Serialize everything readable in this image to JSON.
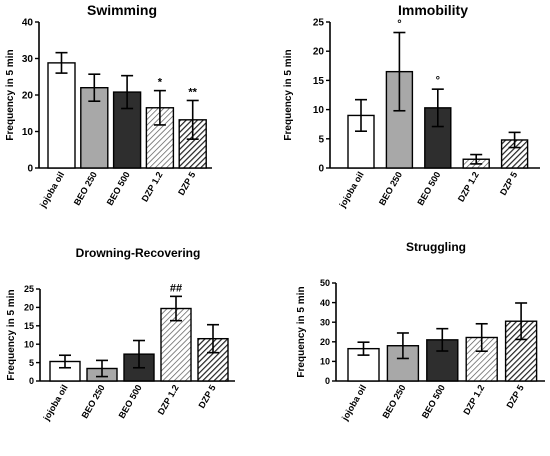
{
  "chart_data": [
    {
      "type": "bar",
      "title": "Swimming",
      "ylabel": "Frequency in 5 min",
      "ylim": [
        0,
        40
      ],
      "yticks": [
        0,
        10,
        20,
        30,
        40
      ],
      "categories": [
        "jojoba oil",
        "BEO 250",
        "BEO 500",
        "DZP 1.2",
        "DZP 5"
      ],
      "values": [
        28.8,
        22.0,
        20.8,
        16.5,
        13.2
      ],
      "errors": [
        2.8,
        3.7,
        4.5,
        4.7,
        5.3
      ],
      "annotations": [
        "",
        "",
        "",
        "*",
        "**"
      ],
      "fills": [
        "white",
        "lightgray",
        "darkgray",
        "hatch",
        "darkhatch"
      ]
    },
    {
      "type": "bar",
      "title": "Immobility",
      "ylabel": "Frequency in 5 min",
      "ylim": [
        0,
        25
      ],
      "yticks": [
        0,
        5,
        10,
        15,
        20,
        25
      ],
      "categories": [
        "jojoba oil",
        "BEO 250",
        "BEO 500",
        "DZP 1.2",
        "DZP 5"
      ],
      "values": [
        9.0,
        16.5,
        10.3,
        1.5,
        4.8
      ],
      "errors": [
        2.7,
        6.7,
        3.2,
        0.8,
        1.3
      ],
      "annotations": [
        "",
        "°",
        "°",
        "",
        ""
      ],
      "fills": [
        "white",
        "lightgray",
        "darkgray",
        "hatch",
        "darkhatch"
      ]
    },
    {
      "type": "bar",
      "title": "Drowning-Recovering",
      "ylabel": "Frequency in 5 min",
      "ylim": [
        0,
        25
      ],
      "yticks": [
        0,
        5,
        10,
        15,
        20,
        25
      ],
      "categories": [
        "jojoba oil",
        "BEO 250",
        "BEO 500",
        "DZP 1.2",
        "DZP 5"
      ],
      "values": [
        5.3,
        3.4,
        7.3,
        19.7,
        11.5
      ],
      "errors": [
        1.7,
        2.2,
        3.7,
        3.3,
        3.8
      ],
      "annotations": [
        "",
        "",
        "",
        "##",
        ""
      ],
      "fills": [
        "white",
        "lightgray",
        "darkgray",
        "hatch",
        "darkhatch"
      ]
    },
    {
      "type": "bar",
      "title": "Struggling",
      "ylabel": "Frequency in 5 min",
      "ylim": [
        0,
        50
      ],
      "yticks": [
        0,
        10,
        20,
        30,
        40,
        50
      ],
      "categories": [
        "jojoba oil",
        "BEO 250",
        "BEO 500",
        "DZP 1.2",
        "DZP 5"
      ],
      "values": [
        16.5,
        18.0,
        21.0,
        22.2,
        30.5
      ],
      "errors": [
        3.3,
        6.5,
        5.7,
        7.0,
        9.3
      ],
      "annotations": [
        "",
        "",
        "",
        "",
        ""
      ],
      "fills": [
        "white",
        "lightgray",
        "darkgray",
        "hatch",
        "darkhatch"
      ]
    }
  ],
  "colors": {
    "white": "#ffffff",
    "lightgray": "#a8a8a8",
    "darkgray": "#2e2e2e",
    "hatch_line": "#555555",
    "darkhatch_line": "#222222",
    "axis": "#000000"
  }
}
